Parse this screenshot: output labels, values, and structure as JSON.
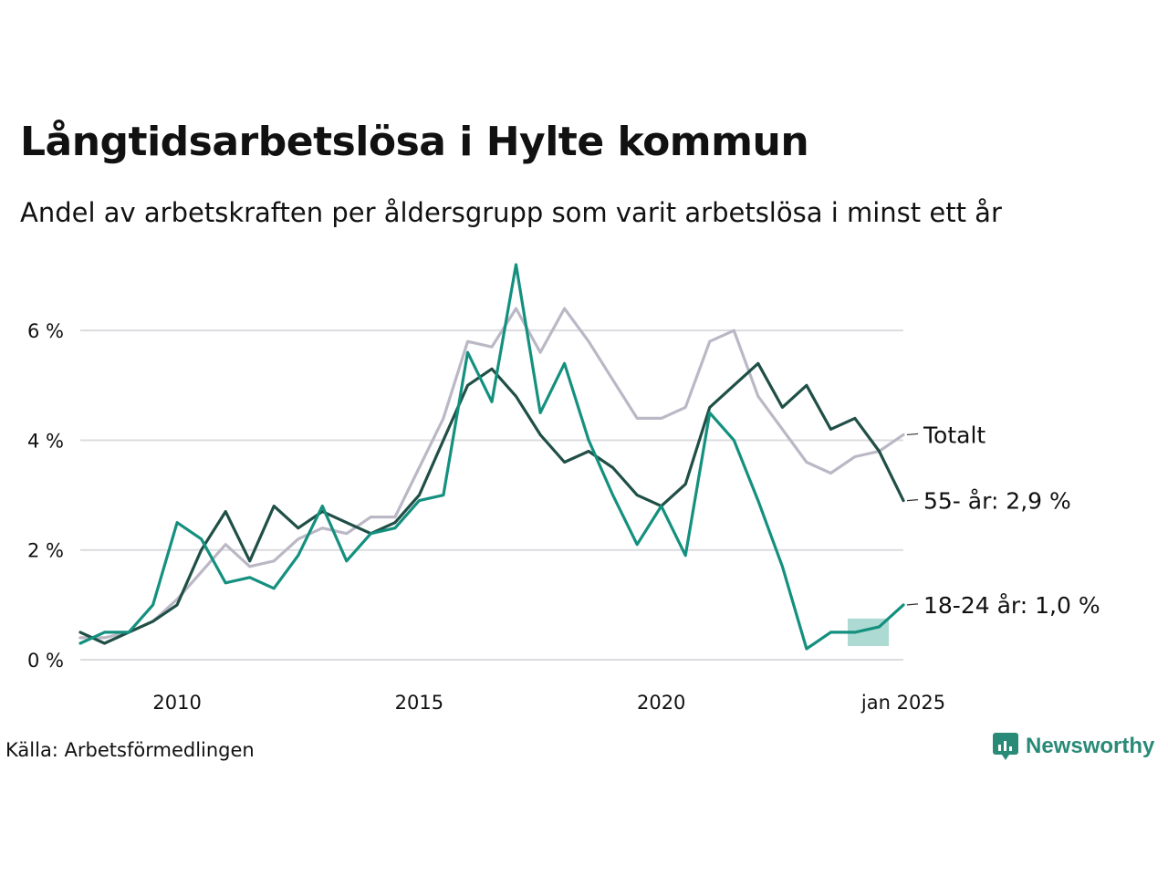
{
  "title": "Långtidsarbetslösa i Hylte kommun",
  "subtitle": "Andel av arbetskraften per åldersgrupp som varit arbetslösa i minst ett år",
  "source": "Källa: Arbetsförmedlingen",
  "brand": "Newsworthy",
  "colors": {
    "total": "#bbb8c6",
    "age55": "#1f4f46",
    "age1824": "#14907f",
    "band": "#9fd3ca",
    "grid": "#dcdce0"
  },
  "chart_data": {
    "type": "line",
    "y_unit": "%",
    "ylim": [
      0,
      7.2
    ],
    "y_ticks": [
      {
        "value": 0,
        "label": "0 %"
      },
      {
        "value": 2,
        "label": "2 %"
      },
      {
        "value": 4,
        "label": "4 %"
      },
      {
        "value": 6,
        "label": "6 %"
      }
    ],
    "xlim": [
      2008.0,
      2025.0
    ],
    "x_ticks": [
      {
        "value": 2010,
        "label": "2010"
      },
      {
        "value": 2015,
        "label": "2015"
      },
      {
        "value": 2020,
        "label": "2020"
      },
      {
        "value": 2025,
        "label": "jan 2025"
      }
    ],
    "grid": true,
    "series": [
      {
        "name": "Totalt",
        "end_label": "Totalt",
        "color_key": "total",
        "points": [
          [
            2008.0,
            0.4
          ],
          [
            2008.5,
            0.4
          ],
          [
            2009.0,
            0.5
          ],
          [
            2009.5,
            0.7
          ],
          [
            2010.0,
            1.1
          ],
          [
            2010.5,
            1.6
          ],
          [
            2011.0,
            2.1
          ],
          [
            2011.5,
            1.7
          ],
          [
            2012.0,
            1.8
          ],
          [
            2012.5,
            2.2
          ],
          [
            2013.0,
            2.4
          ],
          [
            2013.5,
            2.3
          ],
          [
            2014.0,
            2.6
          ],
          [
            2014.5,
            2.6
          ],
          [
            2015.0,
            3.5
          ],
          [
            2015.5,
            4.4
          ],
          [
            2016.0,
            5.8
          ],
          [
            2016.5,
            5.7
          ],
          [
            2017.0,
            6.4
          ],
          [
            2017.5,
            5.6
          ],
          [
            2018.0,
            6.4
          ],
          [
            2018.5,
            5.8
          ],
          [
            2019.0,
            5.1
          ],
          [
            2019.5,
            4.4
          ],
          [
            2020.0,
            4.4
          ],
          [
            2020.5,
            4.6
          ],
          [
            2021.0,
            5.8
          ],
          [
            2021.5,
            6.0
          ],
          [
            2022.0,
            4.8
          ],
          [
            2022.5,
            4.2
          ],
          [
            2023.0,
            3.6
          ],
          [
            2023.5,
            3.4
          ],
          [
            2024.0,
            3.7
          ],
          [
            2024.5,
            3.8
          ],
          [
            2025.0,
            4.1
          ]
        ]
      },
      {
        "name": "55- år",
        "end_label": "55- år: 2,9 %",
        "color_key": "age55",
        "points": [
          [
            2008.0,
            0.5
          ],
          [
            2008.5,
            0.3
          ],
          [
            2009.0,
            0.5
          ],
          [
            2009.5,
            0.7
          ],
          [
            2010.0,
            1.0
          ],
          [
            2010.5,
            2.0
          ],
          [
            2011.0,
            2.7
          ],
          [
            2011.5,
            1.8
          ],
          [
            2012.0,
            2.8
          ],
          [
            2012.5,
            2.4
          ],
          [
            2013.0,
            2.7
          ],
          [
            2013.5,
            2.5
          ],
          [
            2014.0,
            2.3
          ],
          [
            2014.5,
            2.5
          ],
          [
            2015.0,
            3.0
          ],
          [
            2015.5,
            4.0
          ],
          [
            2016.0,
            5.0
          ],
          [
            2016.5,
            5.3
          ],
          [
            2017.0,
            4.8
          ],
          [
            2017.5,
            4.1
          ],
          [
            2018.0,
            3.6
          ],
          [
            2018.5,
            3.8
          ],
          [
            2019.0,
            3.5
          ],
          [
            2019.5,
            3.0
          ],
          [
            2020.0,
            2.8
          ],
          [
            2020.5,
            3.2
          ],
          [
            2021.0,
            4.6
          ],
          [
            2021.5,
            5.0
          ],
          [
            2022.0,
            5.4
          ],
          [
            2022.5,
            4.6
          ],
          [
            2023.0,
            5.0
          ],
          [
            2023.5,
            4.2
          ],
          [
            2024.0,
            4.4
          ],
          [
            2024.5,
            3.8
          ],
          [
            2025.0,
            2.9
          ]
        ]
      },
      {
        "name": "18-24 år",
        "end_label": "18-24 år: 1,0 %",
        "color_key": "age1824",
        "points": [
          [
            2008.0,
            0.3
          ],
          [
            2008.5,
            0.5
          ],
          [
            2009.0,
            0.5
          ],
          [
            2009.5,
            1.0
          ],
          [
            2010.0,
            2.5
          ],
          [
            2010.5,
            2.2
          ],
          [
            2011.0,
            1.4
          ],
          [
            2011.5,
            1.5
          ],
          [
            2012.0,
            1.3
          ],
          [
            2012.5,
            1.9
          ],
          [
            2013.0,
            2.8
          ],
          [
            2013.5,
            1.8
          ],
          [
            2014.0,
            2.3
          ],
          [
            2014.5,
            2.4
          ],
          [
            2015.0,
            2.9
          ],
          [
            2015.5,
            3.0
          ],
          [
            2016.0,
            5.6
          ],
          [
            2016.5,
            4.7
          ],
          [
            2017.0,
            7.2
          ],
          [
            2017.5,
            4.5
          ],
          [
            2018.0,
            5.4
          ],
          [
            2018.5,
            4.0
          ],
          [
            2019.0,
            3.0
          ],
          [
            2019.5,
            2.1
          ],
          [
            2020.0,
            2.8
          ],
          [
            2020.5,
            1.9
          ],
          [
            2021.0,
            4.5
          ],
          [
            2021.5,
            4.0
          ],
          [
            2022.0,
            2.9
          ],
          [
            2022.5,
            1.7
          ],
          [
            2023.0,
            0.2
          ],
          [
            2023.5,
            0.5
          ],
          [
            2024.0,
            0.5
          ],
          [
            2024.5,
            0.6
          ],
          [
            2025.0,
            1.0
          ]
        ]
      }
    ],
    "uncertainty_band": {
      "series": "18-24 år",
      "lower": [
        [
          2023.85,
          0.25
        ],
        [
          2024.3,
          0.25
        ],
        [
          2024.7,
          0.25
        ]
      ],
      "upper": [
        [
          2023.85,
          0.75
        ],
        [
          2024.3,
          0.75
        ],
        [
          2024.7,
          0.75
        ]
      ]
    }
  }
}
